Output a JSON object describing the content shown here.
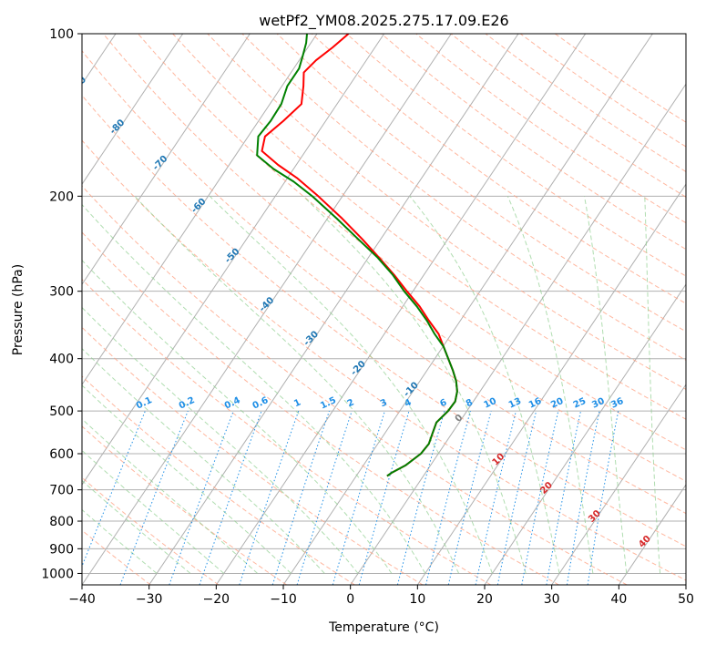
{
  "chart_data": {
    "type": "line",
    "title": "wetPf2_YM08.2025.275.17.09.E26",
    "xlabel": "Temperature (°C)",
    "ylabel": "Pressure (hPa)",
    "xlim": [
      -40,
      50
    ],
    "ylim": [
      1050,
      100
    ],
    "skew": 0.67,
    "x_ticks": [
      -40,
      -30,
      -20,
      -10,
      0,
      10,
      20,
      30,
      40,
      50
    ],
    "y_ticks": [
      1000,
      900,
      800,
      700,
      600,
      500,
      400,
      300,
      200,
      100
    ],
    "colors": {
      "temperature": "#ff0000",
      "dewpoint": "#008000",
      "isotherm": "#b0b0b0",
      "dry_adiabat": "#ff9f7f",
      "moist_adiabat": "#8fcf8f",
      "mixing_ratio": "#1f8fe6",
      "theta_label": "#1f77b4",
      "wet_bulb_label": "#d62728",
      "grid": "#b0b0b0"
    },
    "mixing_ratio_labels": [
      "0.1",
      "0.2",
      "0.4",
      "0.6",
      "1",
      "1.5",
      "2",
      "3",
      "4",
      "6",
      "8",
      "10",
      "13",
      "16",
      "20",
      "25",
      "30",
      "36"
    ],
    "theta_labels": [
      "-100",
      "-90",
      "-80",
      "-70",
      "-60",
      "-50",
      "-40",
      "-30",
      "-20",
      "-10"
    ],
    "wet_bulb_labels": [
      "0",
      "10",
      "20",
      "30",
      "40"
    ],
    "series": [
      {
        "name": "Temperature",
        "points": [
          {
            "p": 660,
            "t": -5.4
          },
          {
            "p": 650,
            "t": -5.0
          },
          {
            "p": 630,
            "t": -3.7
          },
          {
            "p": 600,
            "t": -2.6
          },
          {
            "p": 575,
            "t": -2.4
          },
          {
            "p": 550,
            "t": -2.9
          },
          {
            "p": 525,
            "t": -3.4
          },
          {
            "p": 500,
            "t": -2.8
          },
          {
            "p": 480,
            "t": -2.7
          },
          {
            "p": 460,
            "t": -3.4
          },
          {
            "p": 440,
            "t": -4.6
          },
          {
            "p": 420,
            "t": -6.2
          },
          {
            "p": 400,
            "t": -8.0
          },
          {
            "p": 380,
            "t": -9.9
          },
          {
            "p": 360,
            "t": -11.9
          },
          {
            "p": 340,
            "t": -14.7
          },
          {
            "p": 320,
            "t": -17.5
          },
          {
            "p": 300,
            "t": -20.9
          },
          {
            "p": 280,
            "t": -24.4
          },
          {
            "p": 260,
            "t": -28.4
          },
          {
            "p": 240,
            "t": -32.8
          },
          {
            "p": 220,
            "t": -37.8
          },
          {
            "p": 200,
            "t": -43.6
          },
          {
            "p": 185,
            "t": -48.6
          },
          {
            "p": 175,
            "t": -52.7
          },
          {
            "p": 165,
            "t": -56.5
          },
          {
            "p": 155,
            "t": -57.5
          },
          {
            "p": 145,
            "t": -56.3
          },
          {
            "p": 135,
            "t": -55.3
          },
          {
            "p": 125,
            "t": -56.8
          },
          {
            "p": 118,
            "t": -58.1
          },
          {
            "p": 112,
            "t": -57.5
          },
          {
            "p": 106,
            "t": -56.3
          },
          {
            "p": 100,
            "t": -55.3
          }
        ]
      },
      {
        "name": "Dewpoint",
        "points": [
          {
            "p": 660,
            "t": -5.4
          },
          {
            "p": 650,
            "t": -5.0
          },
          {
            "p": 630,
            "t": -3.7
          },
          {
            "p": 600,
            "t": -2.6
          },
          {
            "p": 575,
            "t": -2.4
          },
          {
            "p": 550,
            "t": -2.9
          },
          {
            "p": 525,
            "t": -3.4
          },
          {
            "p": 500,
            "t": -2.8
          },
          {
            "p": 480,
            "t": -2.7
          },
          {
            "p": 460,
            "t": -3.4
          },
          {
            "p": 440,
            "t": -4.6
          },
          {
            "p": 420,
            "t": -6.2
          },
          {
            "p": 400,
            "t": -8.0
          },
          {
            "p": 380,
            "t": -9.9
          },
          {
            "p": 360,
            "t": -12.5
          },
          {
            "p": 340,
            "t": -15.0
          },
          {
            "p": 320,
            "t": -17.9
          },
          {
            "p": 300,
            "t": -21.3
          },
          {
            "p": 280,
            "t": -24.6
          },
          {
            "p": 260,
            "t": -28.6
          },
          {
            "p": 240,
            "t": -33.4
          },
          {
            "p": 220,
            "t": -38.6
          },
          {
            "p": 200,
            "t": -44.5
          },
          {
            "p": 188,
            "t": -48.7
          },
          {
            "p": 178,
            "t": -53.0
          },
          {
            "p": 168,
            "t": -56.8
          },
          {
            "p": 155,
            "t": -58.5
          },
          {
            "p": 145,
            "t": -58.2
          },
          {
            "p": 135,
            "t": -58.3
          },
          {
            "p": 125,
            "t": -59.2
          },
          {
            "p": 116,
            "t": -59.2
          },
          {
            "p": 110,
            "t": -59.9
          },
          {
            "p": 104,
            "t": -60.7
          },
          {
            "p": 100,
            "t": -61.5
          }
        ]
      }
    ]
  }
}
